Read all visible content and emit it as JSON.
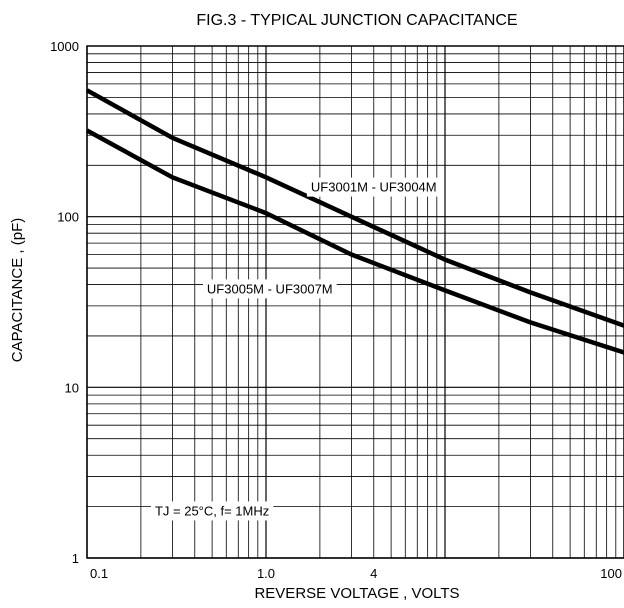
{
  "chart_data": {
    "type": "line",
    "title": "FIG.3 - TYPICAL JUNCTION CAPACITANCE",
    "xlabel": "REVERSE VOLTAGE , VOLTS",
    "ylabel": "CAPACITANCE , (pF)",
    "x_scale": "log",
    "y_scale": "log",
    "xlim": [
      0.1,
      100
    ],
    "ylim": [
      1,
      1000
    ],
    "grid": true,
    "x_ticks": [
      "0.1",
      "1.0",
      "4",
      "100"
    ],
    "x_tick_values": [
      0.1,
      1,
      4,
      100
    ],
    "y_ticks": [
      "1000",
      "100",
      "10",
      "1"
    ],
    "y_tick_values": [
      1000,
      100,
      10,
      1
    ],
    "annotation": "TJ = 25°C,  f= 1MHz",
    "series": [
      {
        "name": "UF3001M - UF3004M",
        "x": [
          0.1,
          0.3,
          1,
          3,
          10,
          30,
          100
        ],
        "y": [
          550,
          290,
          170,
          100,
          56,
          36,
          23
        ]
      },
      {
        "name": "UF3005M - UF3007M",
        "x": [
          0.1,
          0.3,
          1,
          3,
          10,
          30,
          100
        ],
        "y": [
          320,
          170,
          105,
          60,
          37,
          24,
          16
        ]
      }
    ]
  }
}
